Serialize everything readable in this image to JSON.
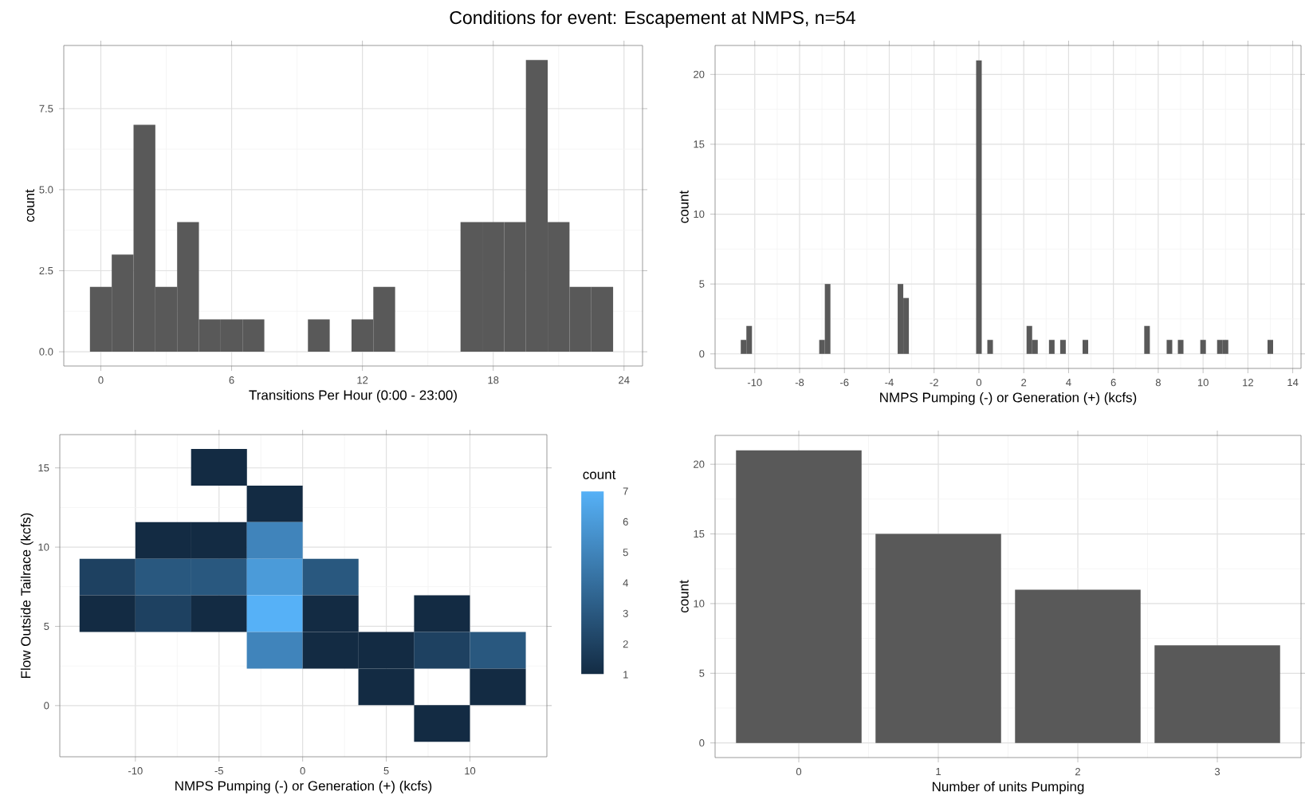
{
  "chart_data": [
    {
      "type": "histogram",
      "title": "Conditions for event: Escapement at NMPS, n=54",
      "xlabel": "Transitions Per Hour (0:00 - 23:00)",
      "ylabel": "count",
      "color": "#595959",
      "bins": [
        -0.5,
        0.5,
        1.5,
        2.5,
        3.5,
        4.5,
        5.5,
        6.5,
        7.5,
        8.5,
        9.5,
        10.5,
        11.5,
        12.5,
        13.5,
        14.5,
        15.5,
        16.5,
        17.5,
        18.5,
        19.5,
        20.5,
        21.5,
        22.5,
        23.5
      ],
      "values": [
        2,
        3,
        7,
        2,
        4,
        1,
        1,
        1,
        0,
        0,
        1,
        0,
        1,
        2,
        0,
        0,
        0,
        4,
        4,
        4,
        9,
        4,
        2,
        2
      ],
      "xlim": [
        -1.7,
        24.85
      ],
      "ylim": [
        -0.44,
        9.45
      ],
      "xticks": [
        0,
        6,
        12,
        18,
        24
      ],
      "yticks": [
        {
          "value": 0,
          "label": "0.0"
        },
        {
          "value": 2.5,
          "label": "2.5"
        },
        {
          "value": 5,
          "label": "5.0"
        },
        {
          "value": 7.5,
          "label": "7.5"
        }
      ],
      "grid": true
    },
    {
      "type": "histogram",
      "xlabel": "NMPS Pumping (-) or Generation (+) (kcfs)",
      "ylabel": "count",
      "color": "#595959",
      "bins": [
        -10.625,
        -10.375,
        -10.125,
        -9.875,
        -9.625,
        -9.375,
        -9.125,
        -8.875,
        -8.625,
        -8.375,
        -8.125,
        -7.875,
        -7.625,
        -7.375,
        -7.125,
        -6.875,
        -6.625,
        -6.375,
        -6.125,
        -5.875,
        -5.625,
        -5.375,
        -5.125,
        -4.875,
        -4.625,
        -4.375,
        -4.125,
        -3.875,
        -3.625,
        -3.375,
        -3.125,
        -2.875,
        -2.625,
        -2.375,
        -2.125,
        -1.875,
        -1.625,
        -1.375,
        -1.125,
        -0.875,
        -0.625,
        -0.375,
        -0.125,
        0.125,
        0.375,
        0.625,
        0.875,
        1.125,
        1.375,
        1.625,
        1.875,
        2.125,
        2.375,
        2.625,
        2.875,
        3.125,
        3.375,
        3.625,
        3.875,
        4.125,
        4.375,
        4.625,
        4.875,
        5.125,
        5.375,
        5.625,
        5.875,
        6.125,
        6.375,
        6.625,
        6.875,
        7.125,
        7.375,
        7.625,
        7.875,
        8.125,
        8.375,
        8.625,
        8.875,
        9.125,
        9.375,
        9.625,
        9.875,
        10.125,
        10.375,
        10.625,
        10.875,
        11.125,
        11.375,
        11.625,
        11.875,
        12.125,
        12.375,
        12.625,
        12.875,
        13.125
      ],
      "values": [
        1,
        2,
        0,
        0,
        0,
        0,
        0,
        0,
        0,
        0,
        0,
        0,
        0,
        0,
        1,
        5,
        0,
        0,
        0,
        0,
        0,
        0,
        0,
        0,
        0,
        0,
        0,
        0,
        5,
        4,
        0,
        0,
        0,
        0,
        0,
        0,
        0,
        0,
        0,
        0,
        0,
        0,
        21,
        0,
        1,
        0,
        0,
        0,
        0,
        0,
        0,
        2,
        1,
        0,
        0,
        1,
        0,
        1,
        0,
        0,
        0,
        1,
        0,
        0,
        0,
        0,
        0,
        0,
        0,
        0,
        0,
        0,
        2,
        0,
        0,
        0,
        1,
        0,
        1,
        0,
        0,
        0,
        1,
        0,
        0,
        1,
        1,
        0,
        0,
        0,
        0,
        0,
        0,
        0,
        1
      ],
      "xlim": [
        -11.77,
        14.37
      ],
      "ylim": [
        -1.04,
        22.07
      ],
      "xticks": [
        -10,
        -8,
        -6,
        -4,
        -2,
        0,
        2,
        4,
        6,
        8,
        10,
        12,
        14
      ],
      "yticks": [
        0,
        5,
        10,
        15,
        20
      ],
      "grid": true
    },
    {
      "type": "heatmap",
      "xlabel": "NMPS Pumping (-) or Generation (+) (kcfs)",
      "ylabel": "Flow Outside Tailrace (kcfs)",
      "clabel": "count",
      "x": [
        -11.67,
        -8.33,
        -5,
        -1.67,
        1.67,
        5,
        8.33,
        11.67
      ],
      "y": [
        15.04,
        12.73,
        10.42,
        8.11,
        5.8,
        3.49,
        1.18,
        -1.13
      ],
      "cells": [
        [
          null,
          null,
          1,
          null,
          null,
          null,
          null,
          null
        ],
        [
          null,
          null,
          null,
          1,
          null,
          null,
          null,
          null
        ],
        [
          null,
          1,
          1,
          5,
          null,
          null,
          null,
          null
        ],
        [
          2,
          3,
          3,
          6,
          3,
          null,
          null,
          null
        ],
        [
          1,
          2,
          1,
          7,
          1,
          null,
          1,
          null
        ],
        [
          null,
          null,
          null,
          5,
          1,
          1,
          2,
          3
        ],
        [
          null,
          null,
          null,
          null,
          null,
          1,
          null,
          1
        ],
        [
          null,
          null,
          null,
          null,
          null,
          null,
          1,
          null
        ]
      ],
      "clim": [
        1,
        7
      ],
      "cticks": [
        1,
        2,
        3,
        4,
        5,
        6,
        7
      ],
      "xlim": [
        -14.52,
        14.6
      ],
      "ylim": [
        -3.23,
        17.1
      ],
      "xticks": [
        -10,
        -5,
        0,
        5,
        10
      ],
      "yticks": [
        0,
        5,
        10,
        15
      ],
      "grid": true
    },
    {
      "type": "bar",
      "xlabel": "Number of units Pumping",
      "ylabel": "count",
      "color": "#595959",
      "categories": [
        "0",
        "1",
        "2",
        "3"
      ],
      "values": [
        21,
        15,
        11,
        7
      ],
      "ylim": [
        -1.05,
        22.07
      ],
      "yticks": [
        0,
        5,
        10,
        15,
        20
      ],
      "grid": true
    }
  ]
}
